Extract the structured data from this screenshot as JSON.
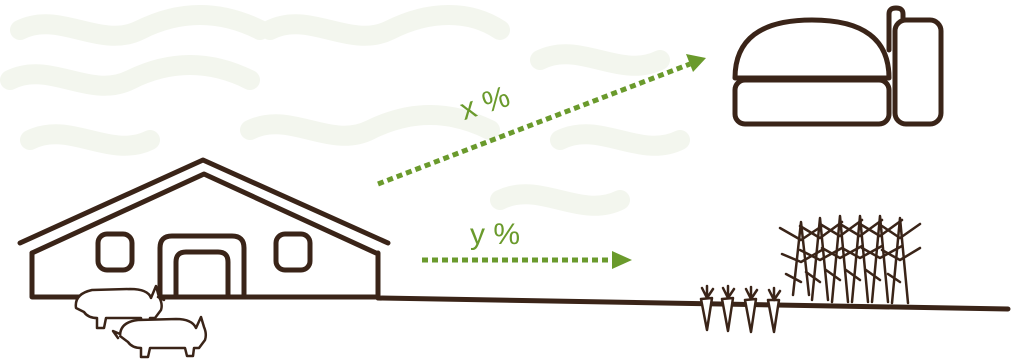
{
  "labels": {
    "to_biogas": "x %",
    "to_field": "y %"
  },
  "colors": {
    "line": "#3a2418",
    "accent": "#6a9a2c",
    "background_pattern": "#f3f6ee",
    "white": "#ffffff"
  },
  "icons": [
    "barn-icon",
    "pig-icon",
    "biogas-plant-icon",
    "carrot-icon",
    "corn-icon",
    "dotted-arrow-icon"
  ]
}
